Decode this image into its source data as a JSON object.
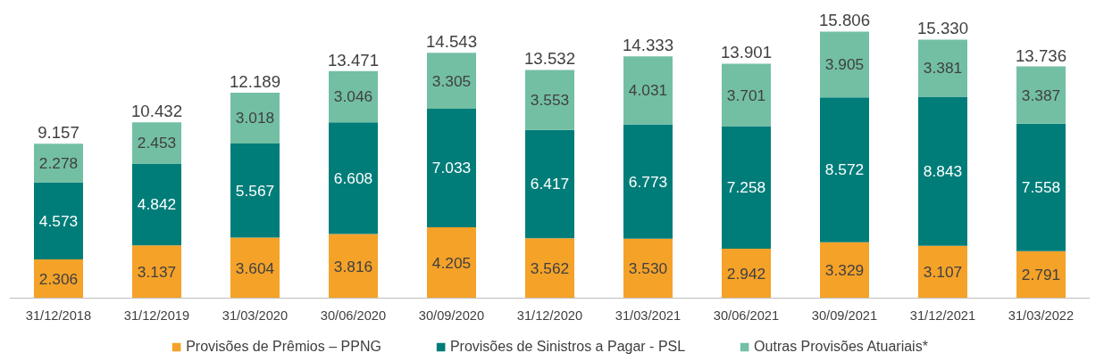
{
  "chart_data": {
    "type": "bar",
    "stacked": true,
    "categories": [
      "31/12/2018",
      "31/12/2019",
      "31/03/2020",
      "30/06/2020",
      "30/09/2020",
      "31/12/2020",
      "31/03/2021",
      "30/06/2021",
      "30/09/2021",
      "31/12/2021",
      "31/03/2022"
    ],
    "series": [
      {
        "name": "Provisões de Prêmios – PPNG",
        "color": "#f5a229",
        "values": [
          2306,
          3137,
          3604,
          3816,
          4205,
          3562,
          3530,
          2942,
          3329,
          3107,
          2791
        ],
        "value_labels": [
          "2.306",
          "3.137",
          "3.604",
          "3.816",
          "4.205",
          "3.562",
          "3.530",
          "2.942",
          "3.329",
          "3.107",
          "2.791"
        ]
      },
      {
        "name": "Provisões de Sinistros a Pagar - PSL",
        "color": "#007d79",
        "values": [
          4573,
          4842,
          5567,
          6608,
          7033,
          6417,
          6773,
          7258,
          8572,
          8843,
          7558
        ],
        "value_labels": [
          "4.573",
          "4.842",
          "5.567",
          "6.608",
          "7.033",
          "6.417",
          "6.773",
          "7.258",
          "8.572",
          "8.843",
          "7.558"
        ]
      },
      {
        "name": "Outras Provisões Atuariais*",
        "color": "#73bfa4",
        "values": [
          2278,
          2453,
          3018,
          3046,
          3305,
          3553,
          4031,
          3701,
          3905,
          3381,
          3387
        ],
        "value_labels": [
          "2.278",
          "2.453",
          "3.018",
          "3.046",
          "3.305",
          "3.553",
          "4.031",
          "3.701",
          "3.905",
          "3.381",
          "3.387"
        ]
      }
    ],
    "totals": [
      "9.157",
      "10.432",
      "12.189",
      "13.471",
      "14.543",
      "13.532",
      "14.333",
      "13.901",
      "15.806",
      "15.330",
      "13.736"
    ],
    "legend": "bottom"
  }
}
